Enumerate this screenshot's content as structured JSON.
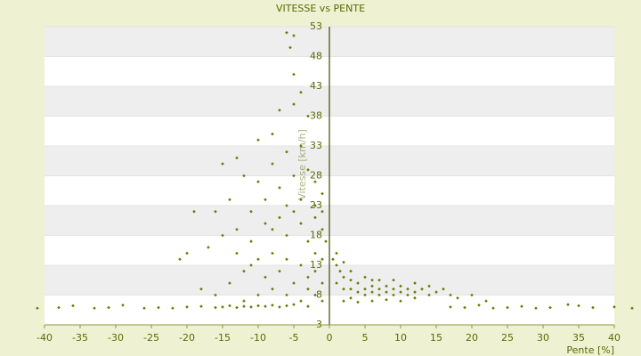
{
  "chart_data": {
    "type": "scatter",
    "title": "VITESSE vs PENTE",
    "x_label": "Pente [%]",
    "y_label": "Vitesse [km/h]",
    "color": "#6b7a00",
    "xlim": [
      -40,
      40
    ],
    "xticks": [
      -40,
      -35,
      -30,
      -25,
      -20,
      -15,
      -10,
      -5,
      0,
      5,
      10,
      15,
      20,
      25,
      30,
      35,
      40
    ],
    "ylim": [
      3,
      53
    ],
    "yticks": [
      3,
      8,
      13,
      18,
      23,
      28,
      33,
      38,
      43,
      48,
      53
    ],
    "grid": true,
    "x": [
      -41,
      -38,
      -36,
      -33,
      -31,
      -29,
      -26,
      -24,
      -22,
      -20,
      -18,
      -16,
      -15,
      -14,
      -13,
      -12,
      -11,
      -10,
      -9,
      -8,
      -7,
      -6,
      -5,
      -3,
      17,
      19,
      21,
      23,
      25,
      27,
      29,
      31,
      33.5,
      35,
      37,
      40,
      42.5,
      -6,
      -5,
      -5.5,
      -5,
      -4,
      -5,
      -3,
      -7,
      -8,
      -10,
      -13,
      -15,
      -12,
      -10,
      -8,
      -6,
      -4,
      -3,
      -2,
      -1,
      -14,
      -16,
      -19,
      -11,
      -9,
      -7,
      -5,
      -4,
      -2,
      -1,
      -20,
      -21,
      -17,
      -15,
      -13,
      -11,
      -9,
      -7,
      -6,
      -5,
      -3,
      -2,
      -1,
      -0.5,
      -18,
      -16,
      -14,
      -12,
      -10,
      -8,
      -7,
      -6,
      -4,
      -3,
      -2,
      -1,
      -12,
      -10,
      -8,
      -6,
      -4,
      -2,
      -1,
      -9,
      -5,
      -3,
      -11,
      -13,
      -8,
      -6,
      -4,
      -2,
      -1,
      0.5,
      1,
      1.5,
      2,
      1,
      2,
      3,
      3,
      4,
      4,
      5,
      5,
      6,
      6,
      7,
      7,
      8,
      8,
      9,
      9,
      10,
      10,
      11,
      11,
      12,
      13,
      14,
      15,
      16,
      17,
      18,
      20,
      22,
      2,
      3,
      4,
      6,
      8,
      10,
      12,
      1,
      2,
      5,
      7,
      9,
      12,
      14,
      3,
      6
    ],
    "y": [
      5.8,
      5.9,
      6.2,
      5.8,
      5.9,
      6.3,
      5.8,
      5.9,
      5.8,
      6.0,
      6.1,
      5.9,
      6.0,
      6.2,
      5.9,
      6.1,
      6.0,
      6.2,
      6.1,
      6.3,
      6.0,
      6.2,
      6.4,
      6.1,
      6.0,
      5.9,
      6.3,
      5.8,
      5.9,
      6.1,
      5.8,
      5.9,
      6.4,
      6.2,
      5.9,
      6.0,
      5.8,
      52,
      51.5,
      49.5,
      45,
      42,
      40,
      38,
      39,
      35,
      34,
      31,
      30,
      28,
      27,
      30,
      32,
      33,
      29,
      27,
      25,
      24,
      22,
      22,
      22,
      24,
      26,
      28,
      24,
      21,
      19,
      15,
      14,
      16,
      18,
      19,
      17,
      20,
      21,
      18,
      22,
      17,
      15,
      14,
      17,
      9,
      8,
      10,
      12,
      14,
      15,
      12,
      14,
      13,
      11,
      12,
      10,
      7,
      8,
      9,
      8,
      7,
      8,
      7,
      11,
      10,
      9,
      13,
      15,
      19,
      23,
      20,
      23,
      22,
      14,
      13,
      12,
      11,
      10,
      9,
      10.5,
      9,
      8.5,
      10,
      9,
      8,
      9.5,
      8.5,
      9,
      8,
      8.5,
      9.5,
      8,
      9,
      8.5,
      9.5,
      8,
      9,
      8.5,
      9,
      8,
      8.5,
      9,
      8,
      7.5,
      8,
      7,
      7,
      7.5,
      6.8,
      7,
      7.2,
      7,
      7.5,
      15,
      13.5,
      11,
      10.5,
      10.5,
      10,
      9.5,
      12,
      10.5
    ]
  }
}
